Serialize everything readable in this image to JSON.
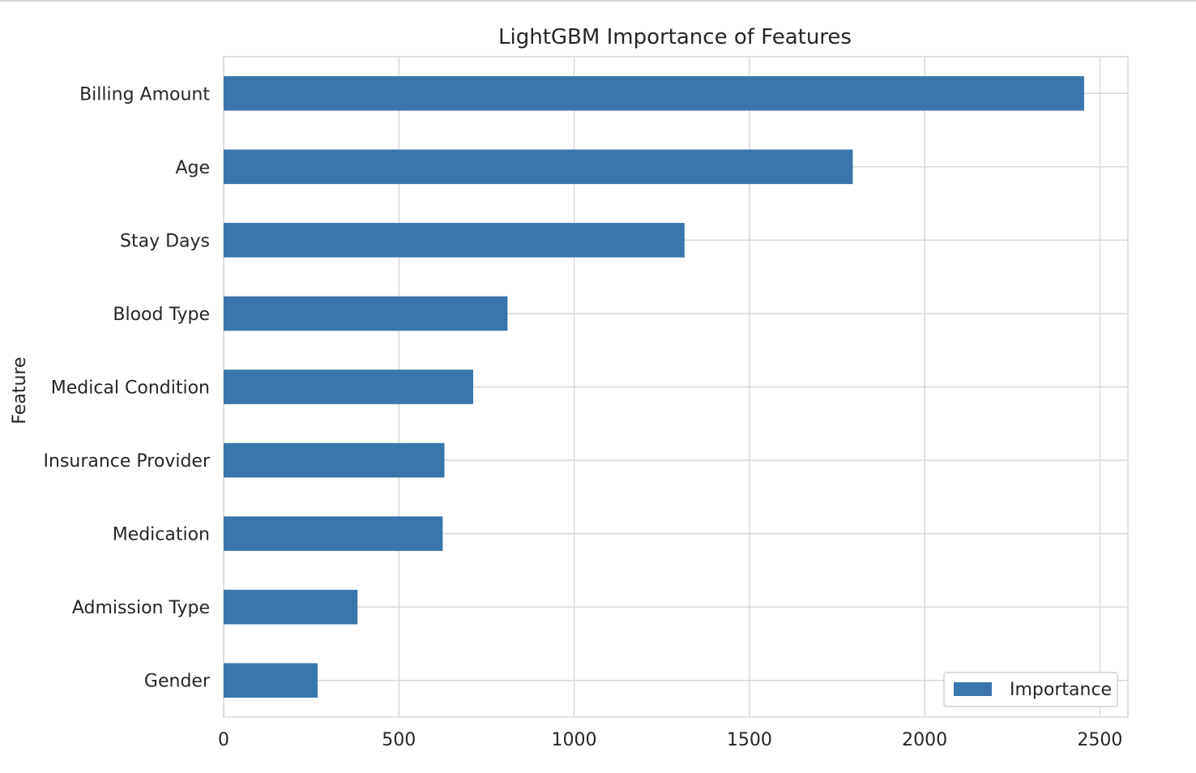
{
  "chart_data": {
    "type": "bar",
    "orientation": "horizontal",
    "title": "LightGBM Importance of Features",
    "xlabel": "",
    "ylabel": "Feature",
    "categories": [
      "Billing Amount",
      "Age",
      "Stay Days",
      "Blood Type",
      "Medical Condition",
      "Insurance Provider",
      "Medication",
      "Admission Type",
      "Gender"
    ],
    "series": [
      {
        "name": "Importance",
        "values": [
          2455,
          1795,
          1315,
          810,
          712,
          630,
          625,
          382,
          268
        ]
      }
    ],
    "xlim": [
      0,
      2580
    ],
    "xticks": [
      "0",
      "500",
      "1000",
      "1500",
      "2000",
      "2500"
    ],
    "grid": true,
    "legend_position": "lower right",
    "colors": {
      "bar": "#3a76ad",
      "grid": "#d9d9d9",
      "text": "#262626"
    }
  }
}
